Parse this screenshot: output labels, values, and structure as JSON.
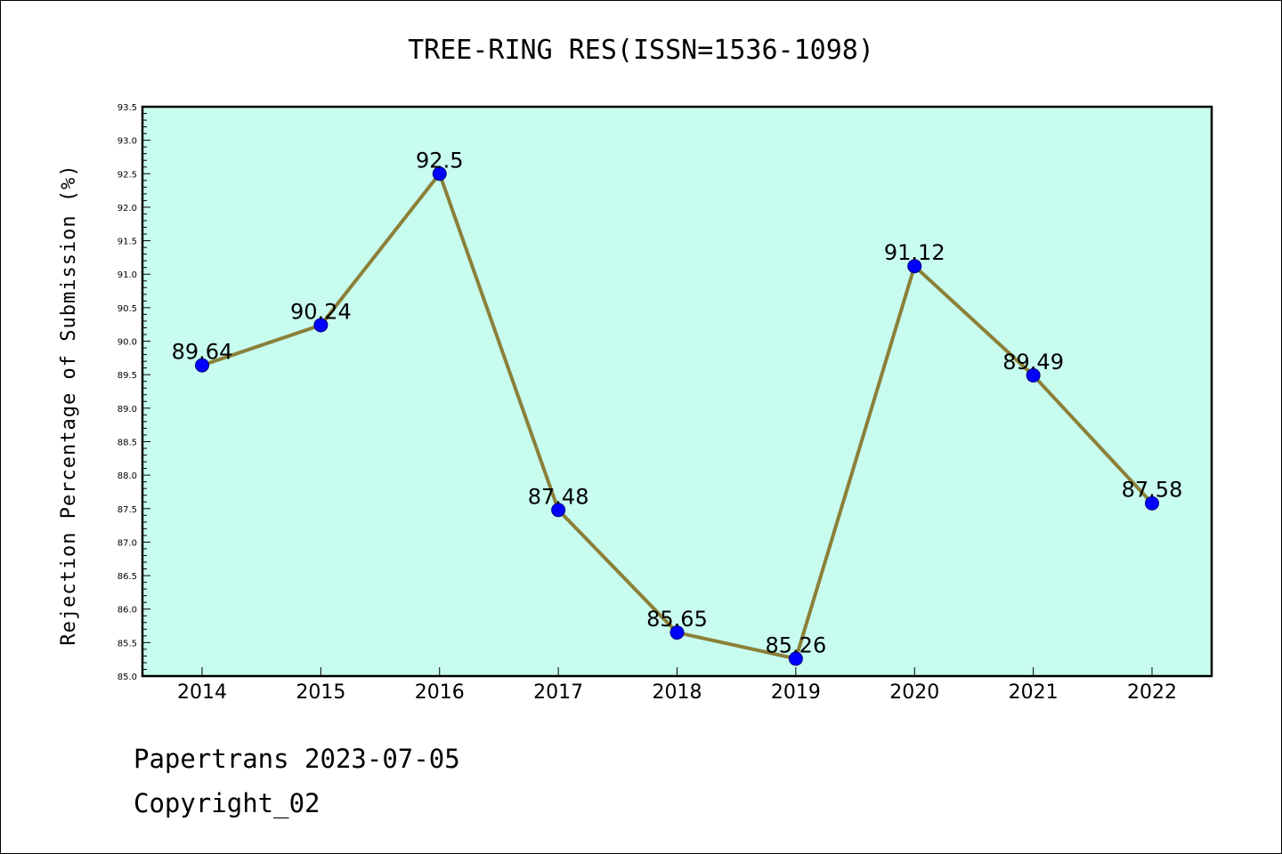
{
  "chart_data": {
    "type": "line",
    "title": "TREE-RING RES(ISSN=1536-1098)",
    "xlabel": "",
    "ylabel": "Rejection Percentage of Submission (%)",
    "categories": [
      "2014",
      "2015",
      "2016",
      "2017",
      "2018",
      "2019",
      "2020",
      "2021",
      "2022"
    ],
    "series": [
      {
        "values": [
          89.64,
          90.24,
          92.5,
          87.48,
          85.65,
          85.26,
          91.12,
          89.49,
          87.58
        ]
      }
    ],
    "data_labels": [
      "89.64",
      "90.24",
      "92.5",
      "87.48",
      "85.65",
      "85.26",
      "91.12",
      "89.49",
      "87.58"
    ],
    "ylim": [
      85.0,
      93.5
    ],
    "yticks": [
      "85.0",
      "85.5",
      "86.0",
      "86.5",
      "87.0",
      "87.5",
      "88.0",
      "88.5",
      "89.0",
      "89.5",
      "90.0",
      "90.5",
      "91.0",
      "91.5",
      "92.0",
      "92.5",
      "93.0",
      "93.5"
    ],
    "grid": false,
    "colors": {
      "plot_background": "#c8fcee",
      "line": "#8b8038",
      "marker": "#0000ff",
      "marker_edge": "#000080"
    }
  },
  "footer": {
    "line1": "Papertrans 2023-07-05",
    "line2": "Copyright_02"
  }
}
